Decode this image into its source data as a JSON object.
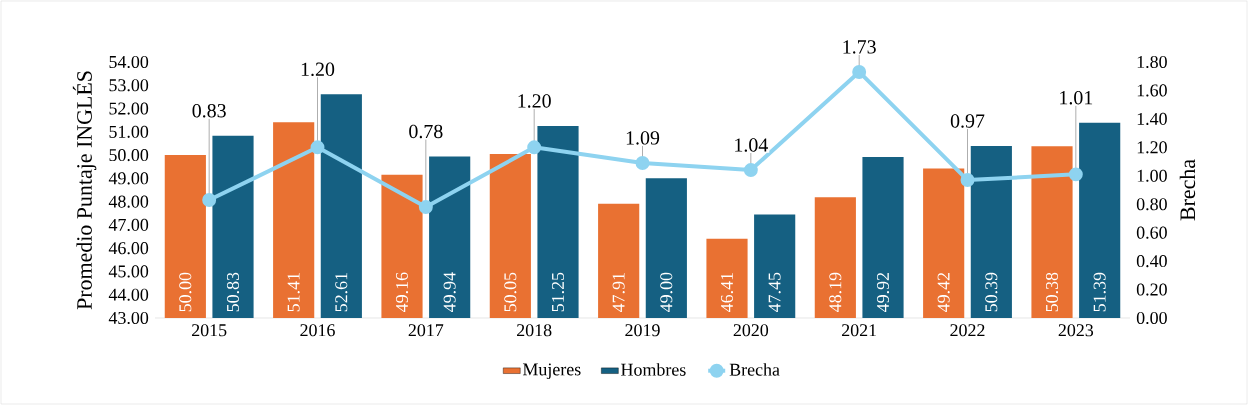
{
  "chart_data": {
    "type": "bar",
    "ylabel": "Promedio Puntaje INGLÉS",
    "y2label": "Brecha",
    "legend": "bottom",
    "categories": [
      "2015",
      "2016",
      "2017",
      "2018",
      "2019",
      "2020",
      "2021",
      "2022",
      "2023"
    ],
    "ylim": [
      43,
      54
    ],
    "yticks": [
      {
        "value": 43,
        "label": "43.00"
      },
      {
        "value": 44,
        "label": "44.00"
      },
      {
        "value": 45,
        "label": "45.00"
      },
      {
        "value": 46,
        "label": "46.00"
      },
      {
        "value": 47,
        "label": "47.00"
      },
      {
        "value": 48,
        "label": "48.00"
      },
      {
        "value": 49,
        "label": "49.00"
      },
      {
        "value": 50,
        "label": "50.00"
      },
      {
        "value": 51,
        "label": "51.00"
      },
      {
        "value": 52,
        "label": "52.00"
      },
      {
        "value": 53,
        "label": "53.00"
      },
      {
        "value": 54,
        "label": "54.00"
      }
    ],
    "y2lim": [
      0,
      1.8
    ],
    "y2ticks": [
      {
        "value": 0,
        "label": "0.00"
      },
      {
        "value": 0.2,
        "label": "0.20"
      },
      {
        "value": 0.4,
        "label": "0.40"
      },
      {
        "value": 0.6,
        "label": "0.60"
      },
      {
        "value": 0.8,
        "label": "0.80"
      },
      {
        "value": 1.0,
        "label": "1.00"
      },
      {
        "value": 1.2,
        "label": "1.20"
      },
      {
        "value": 1.4,
        "label": "1.40"
      },
      {
        "value": 1.6,
        "label": "1.60"
      },
      {
        "value": 1.8,
        "label": "1.80"
      }
    ],
    "series": [
      {
        "name": "Mujeres",
        "color": "#e97132",
        "values": [
          50.0,
          51.41,
          49.16,
          50.05,
          47.91,
          46.41,
          48.19,
          49.42,
          50.38
        ],
        "value_labels": [
          "50.00",
          "51.41",
          "49.16",
          "50.05",
          "47.91",
          "46.41",
          "48.19",
          "49.42",
          "50.38"
        ]
      },
      {
        "name": "Hombres",
        "color": "#156082",
        "values": [
          50.83,
          52.61,
          49.94,
          51.25,
          49.0,
          47.45,
          49.92,
          50.39,
          51.39
        ],
        "value_labels": [
          "50.83",
          "52.61",
          "49.94",
          "51.25",
          "49.00",
          "47.45",
          "49.92",
          "50.39",
          "51.39"
        ]
      },
      {
        "name": "Brecha",
        "type": "line",
        "axis": "y2",
        "marker": "circle",
        "color": "#8ed3f0",
        "values": [
          0.83,
          1.2,
          0.78,
          1.2,
          1.09,
          1.04,
          1.73,
          0.97,
          1.01
        ],
        "value_labels": [
          "0.83",
          "1.20",
          "0.78",
          "1.20",
          "1.09",
          "1.04",
          "1.73",
          "0.97",
          "1.01"
        ]
      }
    ]
  }
}
